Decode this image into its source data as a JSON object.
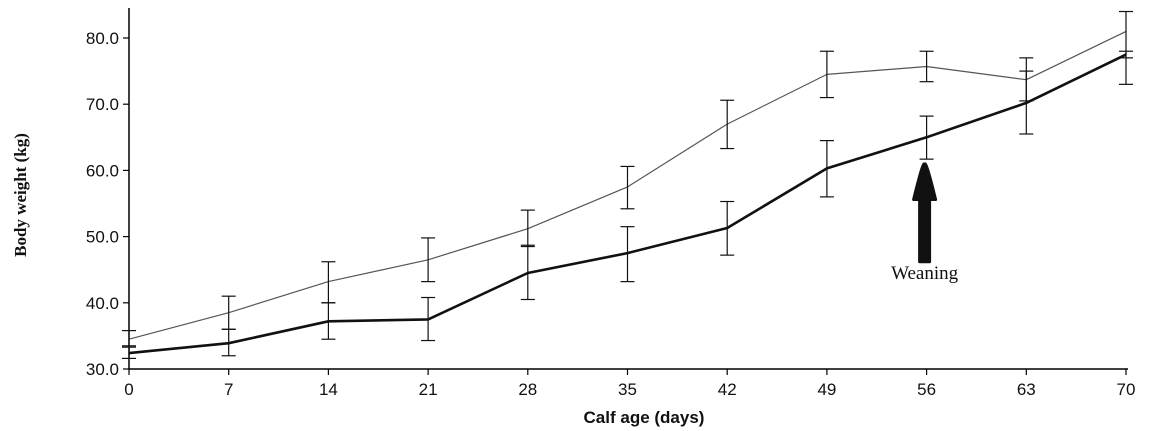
{
  "chart_data": {
    "type": "line",
    "title": "",
    "xlabel": "Calf age (days)",
    "ylabel": "Body weight (kg)",
    "x": [
      0,
      7,
      14,
      21,
      28,
      35,
      42,
      49,
      56,
      63,
      70
    ],
    "xlim": [
      0,
      70
    ],
    "ylim": [
      30,
      85
    ],
    "xticks": [
      "0",
      "7",
      "14",
      "21",
      "28",
      "35",
      "42",
      "49",
      "56",
      "63",
      "70"
    ],
    "yticks": [
      "30.0",
      "40.0",
      "50.0",
      "60.0",
      "70.0",
      "80.0"
    ],
    "grid": false,
    "series": [
      {
        "style": "thin",
        "color": "#555555",
        "values": [
          34.5,
          38.5,
          43.2,
          46.5,
          51.2,
          57.5,
          67.0,
          74.5,
          75.7,
          73.7,
          81.0
        ],
        "error_low": [
          33.5,
          36.0,
          40.0,
          43.2,
          48.5,
          54.2,
          63.3,
          71.0,
          73.4,
          70.5,
          73.0
        ],
        "error_high": [
          35.8,
          41.0,
          46.2,
          49.8,
          54.0,
          60.6,
          70.6,
          78.0,
          78.0,
          77.0,
          84.0
        ]
      },
      {
        "style": "thick",
        "color": "#111111",
        "values": [
          32.4,
          33.9,
          37.2,
          37.5,
          44.5,
          47.5,
          51.3,
          60.3,
          65.0,
          70.2,
          77.5
        ],
        "error_low": [
          31.6,
          32.0,
          34.5,
          34.3,
          40.5,
          43.2,
          47.2,
          56.0,
          61.7,
          65.5,
          77.0
        ],
        "error_high": [
          33.3,
          36.0,
          40.0,
          40.8,
          48.7,
          51.5,
          55.3,
          64.5,
          68.2,
          75.0,
          78.0
        ]
      }
    ],
    "annotations": [
      {
        "text": "Weaning",
        "x": 56,
        "arrow": "up"
      }
    ]
  }
}
